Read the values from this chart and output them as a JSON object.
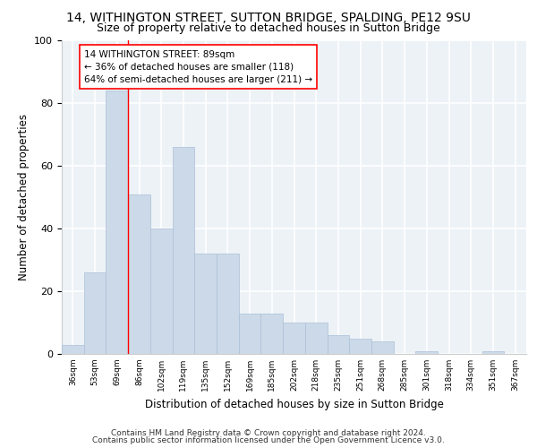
{
  "title": "14, WITHINGTON STREET, SUTTON BRIDGE, SPALDING, PE12 9SU",
  "subtitle": "Size of property relative to detached houses in Sutton Bridge",
  "xlabel": "Distribution of detached houses by size in Sutton Bridge",
  "ylabel": "Number of detached properties",
  "categories": [
    "36sqm",
    "53sqm",
    "69sqm",
    "86sqm",
    "102sqm",
    "119sqm",
    "135sqm",
    "152sqm",
    "169sqm",
    "185sqm",
    "202sqm",
    "218sqm",
    "235sqm",
    "251sqm",
    "268sqm",
    "285sqm",
    "301sqm",
    "318sqm",
    "334sqm",
    "351sqm",
    "367sqm"
  ],
  "values": [
    3,
    26,
    84,
    51,
    40,
    66,
    32,
    32,
    13,
    13,
    10,
    10,
    6,
    5,
    4,
    0,
    1,
    0,
    0,
    1,
    0
  ],
  "bar_color": "#ccd9e8",
  "bar_edge_color": "#aac0d8",
  "vline_x_index": 3,
  "vline_color": "red",
  "annotation_text": "14 WITHINGTON STREET: 89sqm\n← 36% of detached houses are smaller (118)\n64% of semi-detached houses are larger (211) →",
  "annotation_box_color": "white",
  "annotation_box_edge": "red",
  "ylim": [
    0,
    100
  ],
  "yticks": [
    0,
    20,
    40,
    60,
    80,
    100
  ],
  "footer_line1": "Contains HM Land Registry data © Crown copyright and database right 2024.",
  "footer_line2": "Contains public sector information licensed under the Open Government Licence v3.0.",
  "bg_color": "#edf2f7",
  "grid_color": "#ffffff",
  "title_fontsize": 10,
  "subtitle_fontsize": 9,
  "xlabel_fontsize": 8.5,
  "ylabel_fontsize": 8.5,
  "tick_fontsize": 6.5,
  "footer_fontsize": 6.5,
  "annot_fontsize": 7.5
}
